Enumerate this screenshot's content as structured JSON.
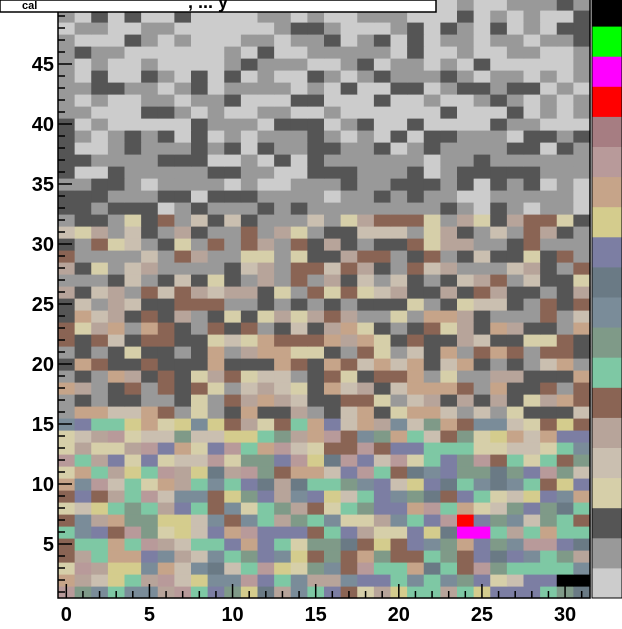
{
  "chart_data": {
    "type": "heatmap",
    "title": "cal",
    "title_rest": ", ... y",
    "x_ticks": [
      "0",
      "5",
      "10",
      "15",
      "20",
      "25",
      "30"
    ],
    "y_ticks": [
      "5",
      "10",
      "15",
      "20",
      "25",
      "30",
      "35",
      "40",
      "45"
    ],
    "xlim": [
      -0.5,
      31.5
    ],
    "ylim": [
      0.5,
      50.5
    ],
    "n_x": 32,
    "n_y": 50,
    "palette": [
      "#cccccc",
      "#999999",
      "#555555",
      "#d6cfa9",
      "#cabfb0",
      "#b7a49a",
      "#8a6454",
      "#7ec8a4",
      "#7f9a88",
      "#7a8c99",
      "#6a7a85",
      "#7c7ea3",
      "#d4cc8d",
      "#c6a489",
      "#b89a9a",
      "#a67d82",
      "#ff0000",
      "#ff00ff",
      "#00ff00",
      "#000000"
    ],
    "zones": [
      {
        "y_from": 40,
        "y_to": 50,
        "levels": [
          0,
          0,
          0,
          1,
          1,
          2
        ]
      },
      {
        "y_from": 33,
        "y_to": 39,
        "levels": [
          0,
          1,
          1,
          1,
          2,
          2
        ]
      },
      {
        "y_from": 25,
        "y_to": 32,
        "levels": [
          1,
          1,
          2,
          2,
          3,
          4,
          5,
          6
        ]
      },
      {
        "y_from": 16,
        "y_to": 24,
        "levels": [
          3,
          4,
          5,
          6,
          1,
          2,
          2,
          13
        ]
      },
      {
        "y_from": 1,
        "y_to": 15,
        "levels": [
          3,
          4,
          5,
          6,
          7,
          8,
          9,
          11,
          12,
          13,
          14
        ]
      }
    ],
    "highlights": [
      {
        "x": 24,
        "y": 7,
        "level": 16
      },
      {
        "x": 25,
        "y": 6,
        "level": 17
      },
      {
        "x": 24,
        "y": 6,
        "level": 17
      },
      {
        "x": 30,
        "y": 2,
        "level": 19
      },
      {
        "x": 31,
        "y": 2,
        "level": 19
      }
    ]
  }
}
